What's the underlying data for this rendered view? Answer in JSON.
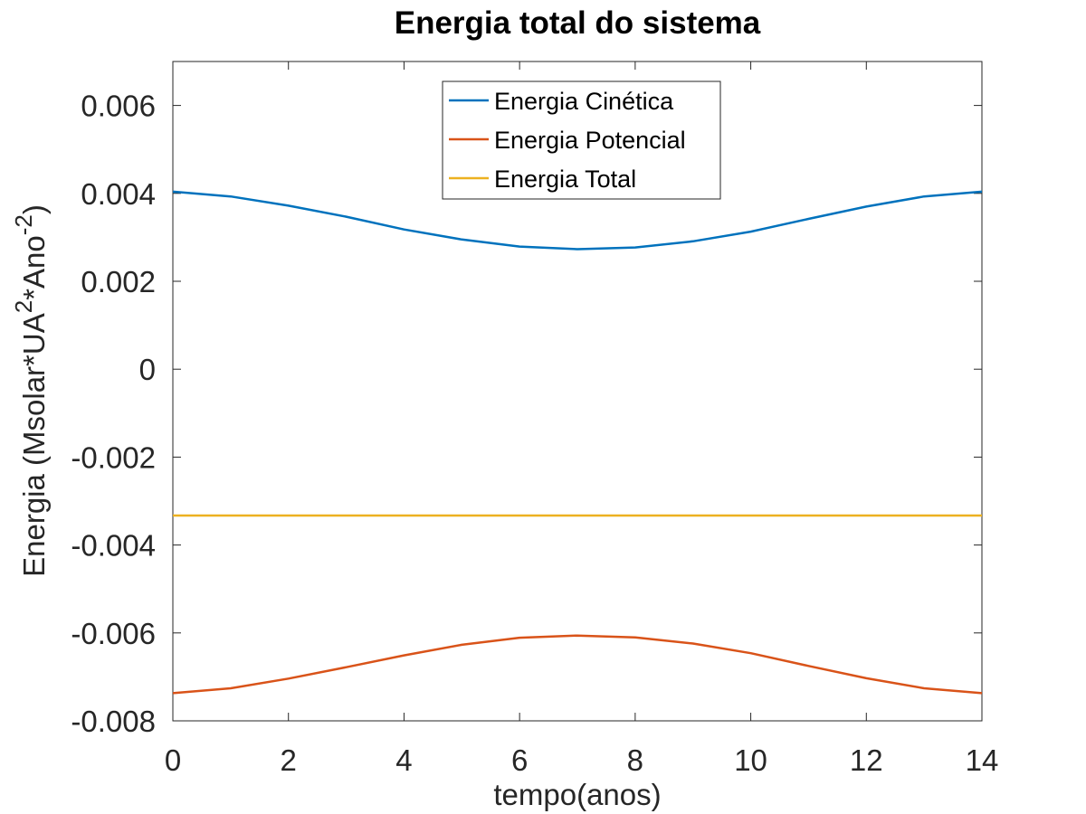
{
  "chart_data": {
    "type": "line",
    "title": "Energia total do sistema",
    "xlabel": "tempo(anos)",
    "ylabel": {
      "base": "Energia (Msolar*UA",
      "sup1": "2",
      "mid": "*Ano",
      "sup2": "-2",
      "end": ")"
    },
    "xlim": [
      0,
      14
    ],
    "ylim": [
      -0.008,
      0.007
    ],
    "xticks": [
      0,
      2,
      4,
      6,
      8,
      10,
      12,
      14
    ],
    "xtick_labels": [
      "0",
      "2",
      "4",
      "6",
      "8",
      "10",
      "12",
      "14"
    ],
    "yticks": [
      -0.008,
      -0.006,
      -0.004,
      -0.002,
      0,
      0.002,
      0.004,
      0.006
    ],
    "ytick_labels": [
      "-0.008",
      "-0.006",
      "-0.004",
      "-0.002",
      "0",
      "0.002",
      "0.004",
      "0.006"
    ],
    "grid": false,
    "legend_position": "top-center",
    "x": [
      0,
      1,
      2,
      3,
      4,
      5,
      6,
      7,
      8,
      9,
      10,
      11,
      12,
      13,
      14
    ],
    "series": [
      {
        "name": "Energia Cinética",
        "color": "#0072bd",
        "values": [
          0.00404,
          0.00393,
          0.00372,
          0.00347,
          0.00318,
          0.00295,
          0.00279,
          0.00273,
          0.00277,
          0.00291,
          0.00313,
          0.00342,
          0.0037,
          0.00393,
          0.00404
        ]
      },
      {
        "name": "Energia Potencial",
        "color": "#d95319",
        "values": [
          -0.00737,
          -0.00726,
          -0.00704,
          -0.00678,
          -0.00651,
          -0.00627,
          -0.00611,
          -0.00606,
          -0.0061,
          -0.00624,
          -0.00646,
          -0.00675,
          -0.00703,
          -0.00726,
          -0.00737
        ]
      },
      {
        "name": "Energia Total",
        "color": "#edb120",
        "values": [
          -0.00333,
          -0.00333,
          -0.00333,
          -0.00333,
          -0.00333,
          -0.00333,
          -0.00333,
          -0.00333,
          -0.00333,
          -0.00333,
          -0.00333,
          -0.00333,
          -0.00333,
          -0.00333,
          -0.00333
        ]
      }
    ]
  }
}
